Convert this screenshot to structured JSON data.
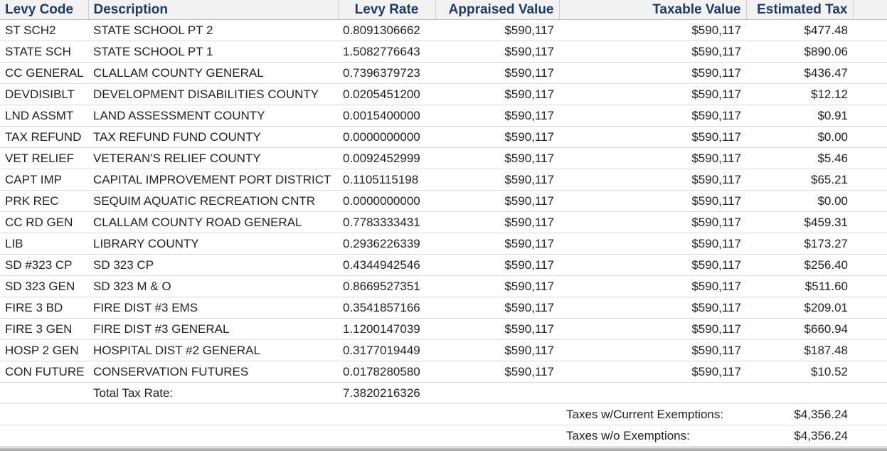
{
  "header": {
    "levy_code": "Levy Code",
    "description": "Description",
    "levy_rate": "Levy Rate",
    "appraised_value": "Appraised Value",
    "taxable_value": "Taxable Value",
    "estimated_tax": "Estimated Tax"
  },
  "rows": [
    {
      "code": "ST SCH2",
      "desc": "STATE SCHOOL PT 2",
      "rate": "0.8091306662",
      "appraised": "$590,117",
      "taxable": "$590,117",
      "tax": "$477.48"
    },
    {
      "code": "STATE SCH",
      "desc": "STATE SCHOOL PT 1",
      "rate": "1.5082776643",
      "appraised": "$590,117",
      "taxable": "$590,117",
      "tax": "$890.06"
    },
    {
      "code": "CC GENERAL",
      "desc": "CLALLAM COUNTY GENERAL",
      "rate": "0.7396379723",
      "appraised": "$590,117",
      "taxable": "$590,117",
      "tax": "$436.47"
    },
    {
      "code": "DEVDISIBLT",
      "desc": "DEVELOPMENT DISABILITIES COUNTY",
      "rate": "0.0205451200",
      "appraised": "$590,117",
      "taxable": "$590,117",
      "tax": "$12.12"
    },
    {
      "code": "LND ASSMT",
      "desc": "LAND ASSESSMENT COUNTY",
      "rate": "0.0015400000",
      "appraised": "$590,117",
      "taxable": "$590,117",
      "tax": "$0.91"
    },
    {
      "code": "TAX REFUND",
      "desc": "TAX REFUND FUND COUNTY",
      "rate": "0.0000000000",
      "appraised": "$590,117",
      "taxable": "$590,117",
      "tax": "$0.00"
    },
    {
      "code": "VET RELIEF",
      "desc": "VETERAN'S RELIEF COUNTY",
      "rate": "0.0092452999",
      "appraised": "$590,117",
      "taxable": "$590,117",
      "tax": "$5.46"
    },
    {
      "code": "CAPT IMP",
      "desc": "CAPITAL IMPROVEMENT PORT DISTRICT",
      "rate": "0.1105115198",
      "appraised": "$590,117",
      "taxable": "$590,117",
      "tax": "$65.21"
    },
    {
      "code": "PRK REC",
      "desc": "SEQUIM AQUATIC RECREATION CNTR",
      "rate": "0.0000000000",
      "appraised": "$590,117",
      "taxable": "$590,117",
      "tax": "$0.00"
    },
    {
      "code": "CC RD GEN",
      "desc": "CLALLAM COUNTY ROAD GENERAL",
      "rate": "0.7783333431",
      "appraised": "$590,117",
      "taxable": "$590,117",
      "tax": "$459.31"
    },
    {
      "code": "LIB",
      "desc": "LIBRARY COUNTY",
      "rate": "0.2936226339",
      "appraised": "$590,117",
      "taxable": "$590,117",
      "tax": "$173.27"
    },
    {
      "code": "SD #323 CP",
      "desc": "SD 323 CP",
      "rate": "0.4344942546",
      "appraised": "$590,117",
      "taxable": "$590,117",
      "tax": "$256.40"
    },
    {
      "code": "SD 323 GEN",
      "desc": "SD 323 M & O",
      "rate": "0.8669527351",
      "appraised": "$590,117",
      "taxable": "$590,117",
      "tax": "$511.60"
    },
    {
      "code": "FIRE 3 BD",
      "desc": "FIRE DIST #3 EMS",
      "rate": "0.3541857166",
      "appraised": "$590,117",
      "taxable": "$590,117",
      "tax": "$209.01"
    },
    {
      "code": "FIRE 3 GEN",
      "desc": "FIRE DIST #3 GENERAL",
      "rate": "1.1200147039",
      "appraised": "$590,117",
      "taxable": "$590,117",
      "tax": "$660.94"
    },
    {
      "code": "HOSP 2 GEN",
      "desc": "HOSPITAL DIST #2 GENERAL",
      "rate": "0.3177019449",
      "appraised": "$590,117",
      "taxable": "$590,117",
      "tax": "$187.48"
    },
    {
      "code": "CON FUTURE",
      "desc": "CONSERVATION FUTURES",
      "rate": "0.0178280580",
      "appraised": "$590,117",
      "taxable": "$590,117",
      "tax": "$10.52"
    }
  ],
  "totals": {
    "total_rate_label": "Total Tax Rate:",
    "total_rate_value": "7.3820216326",
    "current_exemptions_label": "Taxes w/Current Exemptions:",
    "current_exemptions_value": "$4,356.24",
    "without_exemptions_label": "Taxes w/o Exemptions:",
    "without_exemptions_value": "$4,356.24"
  }
}
